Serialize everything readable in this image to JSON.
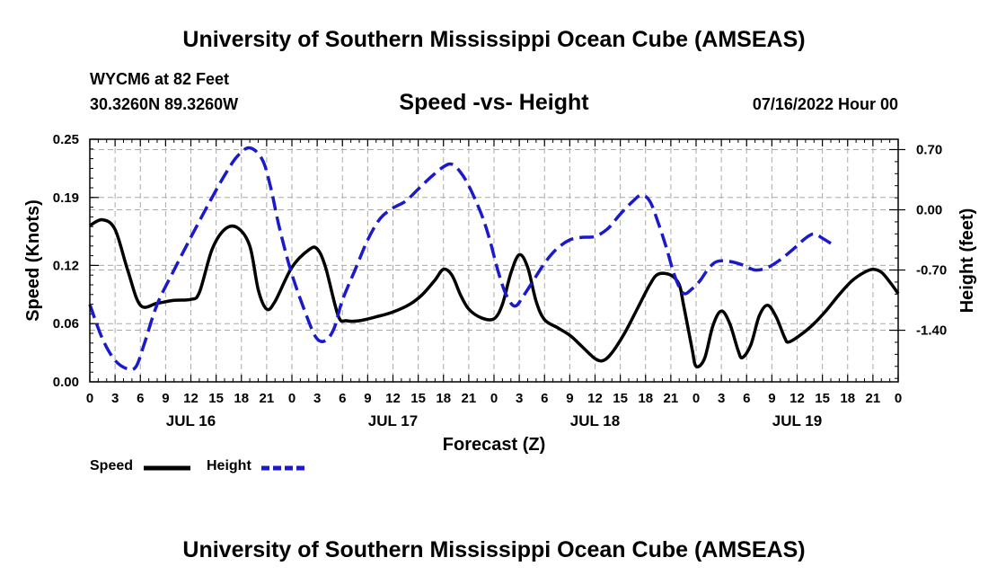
{
  "header": {
    "title": "University of Southern Mississippi Ocean Cube (AMSEAS)",
    "station": "WYCM6 at 82 Feet",
    "coords": "30.3260N  89.3260W",
    "subtitle": "Speed -vs- Height",
    "datetime": "07/16/2022 Hour 00"
  },
  "footer": {
    "title": "University of Southern Mississippi Ocean Cube (AMSEAS)"
  },
  "legend": {
    "speed_label": "Speed",
    "height_label": "Height"
  },
  "colors": {
    "speed": "#000000",
    "height": "#1a1acc",
    "grid": "#aaaaaa"
  },
  "chart_data": {
    "type": "line",
    "title": "Speed -vs- Height",
    "xlabel": "Forecast (Z)",
    "ylabel": "Speed (Knots)",
    "ylabel_right": "Height (feet)",
    "xlim": [
      0,
      96
    ],
    "ylim": [
      0,
      0.25
    ],
    "ylim_right": [
      -2.0,
      0.82
    ],
    "x_ticks": [
      0,
      3,
      6,
      9,
      12,
      15,
      18,
      21,
      24,
      27,
      30,
      33,
      36,
      39,
      42,
      45,
      48,
      51,
      54,
      57,
      60,
      63,
      66,
      69,
      72,
      75,
      78,
      81,
      84,
      87,
      90,
      93,
      96
    ],
    "x_tick_labels": [
      "0",
      "3",
      "6",
      "9",
      "12",
      "15",
      "18",
      "21",
      "0",
      "3",
      "6",
      "9",
      "12",
      "15",
      "18",
      "21",
      "0",
      "3",
      "6",
      "9",
      "12",
      "15",
      "18",
      "21",
      "0",
      "3",
      "6",
      "9",
      "12",
      "15",
      "18",
      "21",
      "0"
    ],
    "day_labels": [
      {
        "x": 12,
        "label": "JUL 16"
      },
      {
        "x": 36,
        "label": "JUL 17"
      },
      {
        "x": 60,
        "label": "JUL 18"
      },
      {
        "x": 84,
        "label": "JUL 19"
      }
    ],
    "y_ticks": [
      0.0,
      0.06,
      0.12,
      0.19,
      0.25
    ],
    "y_tick_labels": [
      "0.00",
      "0.06",
      "0.12",
      "0.19",
      "0.25"
    ],
    "y_ticks_right": [
      0.7,
      0.0,
      -0.7,
      -1.4
    ],
    "y_tick_labels_right": [
      "0.70",
      "0.00",
      "-0.70",
      "-1.40"
    ],
    "series": [
      {
        "name": "Speed",
        "axis": "left",
        "style": "solid",
        "points": [
          [
            0,
            0.161
          ],
          [
            1.5,
            0.167
          ],
          [
            3,
            0.157
          ],
          [
            4.5,
            0.115
          ],
          [
            6,
            0.079
          ],
          [
            8,
            0.081
          ],
          [
            10,
            0.084
          ],
          [
            12,
            0.085
          ],
          [
            13,
            0.092
          ],
          [
            14.5,
            0.136
          ],
          [
            16,
            0.157
          ],
          [
            17.5,
            0.159
          ],
          [
            19,
            0.14
          ],
          [
            20,
            0.095
          ],
          [
            21,
            0.075
          ],
          [
            22,
            0.083
          ],
          [
            24,
            0.118
          ],
          [
            26,
            0.136
          ],
          [
            27,
            0.137
          ],
          [
            28,
            0.118
          ],
          [
            29.5,
            0.068
          ],
          [
            30.5,
            0.063
          ],
          [
            32,
            0.063
          ],
          [
            34,
            0.067
          ],
          [
            36,
            0.072
          ],
          [
            38,
            0.08
          ],
          [
            39.5,
            0.09
          ],
          [
            41,
            0.105
          ],
          [
            42,
            0.116
          ],
          [
            43,
            0.11
          ],
          [
            44,
            0.09
          ],
          [
            45,
            0.075
          ],
          [
            46.5,
            0.066
          ],
          [
            48,
            0.065
          ],
          [
            49,
            0.08
          ],
          [
            50,
            0.112
          ],
          [
            51,
            0.131
          ],
          [
            52,
            0.118
          ],
          [
            53,
            0.083
          ],
          [
            54,
            0.064
          ],
          [
            55.5,
            0.056
          ],
          [
            57,
            0.048
          ],
          [
            58.5,
            0.036
          ],
          [
            60,
            0.024
          ],
          [
            61,
            0.022
          ],
          [
            62,
            0.03
          ],
          [
            63.5,
            0.05
          ],
          [
            65,
            0.075
          ],
          [
            66.5,
            0.1
          ],
          [
            67.5,
            0.111
          ],
          [
            69,
            0.11
          ],
          [
            70,
            0.1
          ],
          [
            70.5,
            0.08
          ],
          [
            71.5,
            0.035
          ],
          [
            72,
            0.016
          ],
          [
            73,
            0.024
          ],
          [
            74,
            0.058
          ],
          [
            75,
            0.073
          ],
          [
            76,
            0.06
          ],
          [
            77,
            0.032
          ],
          [
            77.5,
            0.025
          ],
          [
            78.5,
            0.038
          ],
          [
            79.5,
            0.068
          ],
          [
            80.5,
            0.079
          ],
          [
            81.5,
            0.067
          ],
          [
            82.5,
            0.046
          ],
          [
            83,
            0.041
          ],
          [
            84.5,
            0.049
          ],
          [
            86,
            0.06
          ],
          [
            87.5,
            0.074
          ],
          [
            89,
            0.09
          ],
          [
            90.5,
            0.104
          ],
          [
            92,
            0.113
          ],
          [
            93,
            0.116
          ],
          [
            94,
            0.113
          ],
          [
            95,
            0.103
          ],
          [
            96,
            0.091
          ]
        ]
      },
      {
        "name": "Height",
        "axis": "right",
        "style": "dashed",
        "points": [
          [
            0,
            -1.1
          ],
          [
            1.5,
            -1.5
          ],
          [
            3,
            -1.75
          ],
          [
            4.5,
            -1.85
          ],
          [
            5.5,
            -1.82
          ],
          [
            6.5,
            -1.55
          ],
          [
            8,
            -1.1
          ],
          [
            10,
            -0.7
          ],
          [
            12,
            -0.32
          ],
          [
            14,
            0.05
          ],
          [
            16,
            0.4
          ],
          [
            17.5,
            0.62
          ],
          [
            19,
            0.72
          ],
          [
            20.5,
            0.58
          ],
          [
            21.5,
            0.25
          ],
          [
            22.5,
            -0.2
          ],
          [
            24,
            -0.75
          ],
          [
            26,
            -1.3
          ],
          [
            27,
            -1.5
          ],
          [
            28,
            -1.52
          ],
          [
            29,
            -1.38
          ],
          [
            30,
            -1.05
          ],
          [
            31.5,
            -0.7
          ],
          [
            33,
            -0.35
          ],
          [
            34.5,
            -0.1
          ],
          [
            36,
            0.02
          ],
          [
            37.5,
            0.1
          ],
          [
            39,
            0.24
          ],
          [
            40.5,
            0.38
          ],
          [
            42,
            0.5
          ],
          [
            43,
            0.53
          ],
          [
            44,
            0.44
          ],
          [
            45,
            0.28
          ],
          [
            46.5,
            -0.05
          ],
          [
            47.5,
            -0.35
          ],
          [
            48.5,
            -0.72
          ],
          [
            49.5,
            -1.0
          ],
          [
            50.5,
            -1.12
          ],
          [
            51.5,
            -1.0
          ],
          [
            52.5,
            -0.85
          ],
          [
            54,
            -0.62
          ],
          [
            55.5,
            -0.45
          ],
          [
            57,
            -0.35
          ],
          [
            58.5,
            -0.32
          ],
          [
            60,
            -0.31
          ],
          [
            61.5,
            -0.22
          ],
          [
            63,
            -0.05
          ],
          [
            64.5,
            0.1
          ],
          [
            65.5,
            0.17
          ],
          [
            66.5,
            0.1
          ],
          [
            67.5,
            -0.15
          ],
          [
            68.5,
            -0.45
          ],
          [
            69.5,
            -0.78
          ],
          [
            70.5,
            -0.97
          ],
          [
            71.5,
            -0.92
          ],
          [
            72.5,
            -0.82
          ],
          [
            73.5,
            -0.68
          ],
          [
            74.5,
            -0.6
          ],
          [
            76,
            -0.6
          ],
          [
            77.5,
            -0.64
          ],
          [
            79,
            -0.7
          ],
          [
            80.5,
            -0.67
          ],
          [
            82,
            -0.58
          ],
          [
            83.5,
            -0.46
          ],
          [
            85,
            -0.33
          ],
          [
            86,
            -0.28
          ],
          [
            87,
            -0.33
          ],
          [
            88,
            -0.39
          ]
        ]
      }
    ]
  }
}
